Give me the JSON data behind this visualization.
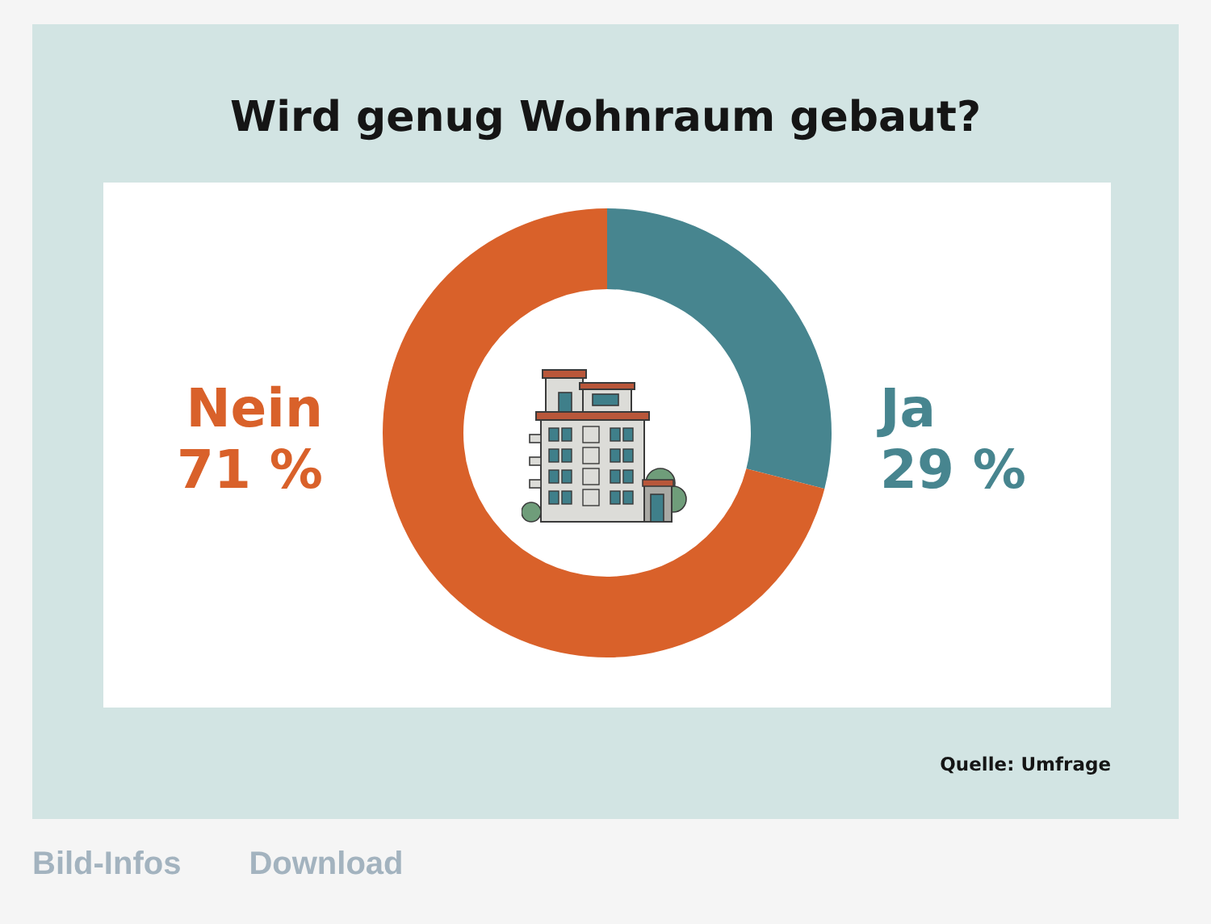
{
  "chart_data": {
    "type": "donut",
    "title": "Wird genug Wohnraum gebaut?",
    "categories": [
      "Ja",
      "Nein"
    ],
    "values": [
      29,
      71
    ],
    "colors": [
      "#47858f",
      "#d9612a"
    ],
    "value_labels": [
      "29 %",
      "71 %"
    ],
    "annotations": [
      "Quelle: Umfrage",
      "Bild-Infos",
      "Download"
    ]
  }
}
